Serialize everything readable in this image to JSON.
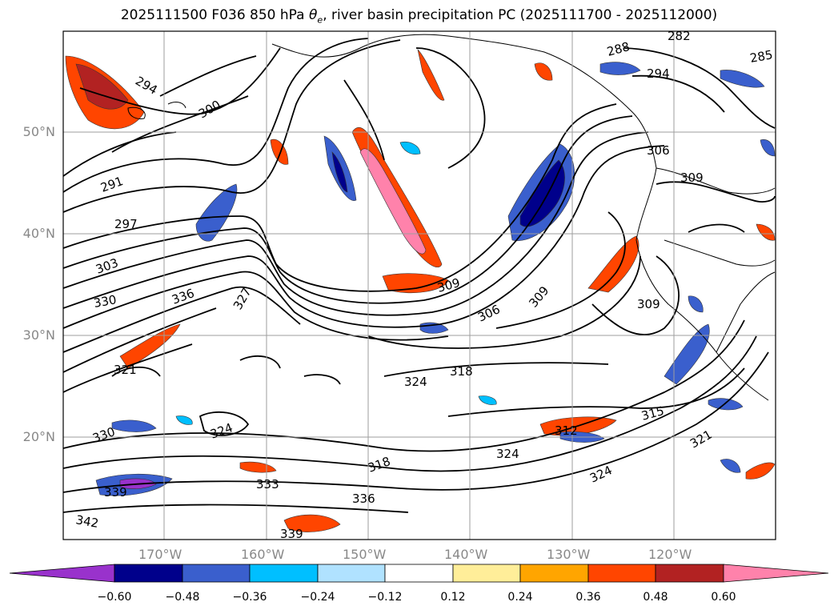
{
  "title": {
    "prefix": "2025111500 F036 850 hPa ",
    "theta": "θ",
    "theta_sub": "e",
    "suffix": ", river basin precipitation PC (2025111700 - 2025112000)"
  },
  "map": {
    "lat_labels": [
      "50°N",
      "40°N",
      "30°N",
      "20°N"
    ],
    "lon_labels": [
      "170°W",
      "160°W",
      "150°W",
      "140°W",
      "130°W",
      "120°W"
    ],
    "contour_labels": [
      "294",
      "300",
      "291",
      "297",
      "303",
      "330",
      "336",
      "327",
      "321",
      "324",
      "318",
      "309",
      "306",
      "288",
      "282",
      "285",
      "312",
      "315",
      "333",
      "339",
      "342"
    ]
  },
  "colorbar": {
    "ticks": [
      "−0.60",
      "−0.48",
      "−0.36",
      "−0.24",
      "−0.12",
      "0.12",
      "0.24",
      "0.36",
      "0.48",
      "0.60"
    ],
    "colors": [
      "#9932cc",
      "#00008b",
      "#3a5fcd",
      "#00bfff",
      "#b0e2ff",
      "#ffffff",
      "#ffee99",
      "#ffa500",
      "#ff4500",
      "#b22222",
      "#ff82ab"
    ],
    "extend": "both"
  },
  "colors": {
    "negative_strong": "#00008b",
    "negative": "#3a5fcd",
    "positive": "#ff4500",
    "positive_strong": "#b22222",
    "contour": "#000000",
    "grid": "#9e9e9e"
  }
}
